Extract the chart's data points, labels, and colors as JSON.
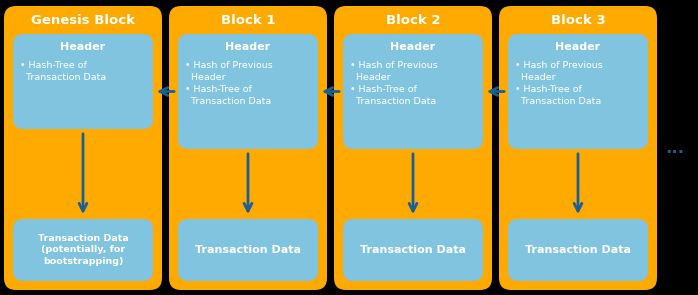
{
  "background_color": "#000000",
  "orange_color": "#FFAA00",
  "blue_color": "#80C4E0",
  "text_white": "#FFFFFF",
  "text_dark": "#1A5C8C",
  "arrow_color": "#1A6096",
  "blocks": [
    {
      "title": "Genesis Block",
      "has_prev_hash": false,
      "tx_extra": "(potentially, for\nbootstrapping)"
    },
    {
      "title": "Block 1",
      "has_prev_hash": true,
      "tx_extra": ""
    },
    {
      "title": "Block 2",
      "has_prev_hash": true,
      "tx_extra": ""
    },
    {
      "title": "Block 3",
      "has_prev_hash": true,
      "tx_extra": ""
    }
  ],
  "ellipsis": "...",
  "fig_width": 6.98,
  "fig_height": 2.95,
  "dpi": 100
}
